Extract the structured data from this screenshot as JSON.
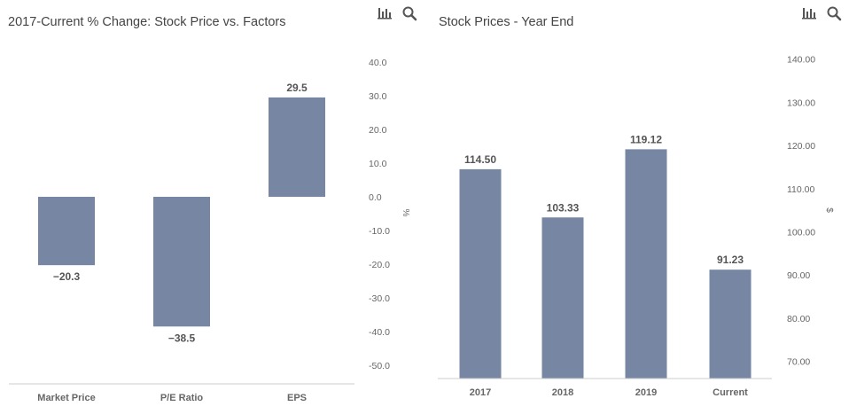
{
  "colors": {
    "bar": "#7787a3",
    "axis_text": "#666666",
    "title": "#444444",
    "label": "#555555",
    "icon": "#555555"
  },
  "icons": {
    "chart_menu": "bar-chart-icon",
    "search": "search-icon"
  },
  "charts": [
    {
      "title": "2017-Current % Change: Stock Price vs. Factors",
      "chart_data": {
        "type": "bar",
        "categories": [
          "Market Price",
          "P/E Ratio",
          "EPS"
        ],
        "values": [
          -20.3,
          -38.5,
          29.5
        ],
        "data_labels": [
          "−20.3",
          "−38.5",
          "29.5"
        ],
        "ylabel": "%",
        "ylim": [
          -50,
          40
        ],
        "yticks": [
          40,
          30,
          20,
          10,
          0,
          -10,
          -20,
          -30,
          -40,
          -50
        ],
        "ytick_labels": [
          "40.0",
          "30.0",
          "20.0",
          "10.0",
          "0.0",
          "-10.0",
          "-20.0",
          "-30.0",
          "-40.0",
          "-50.0"
        ],
        "y_axis_side": "right",
        "grid": false
      }
    },
    {
      "title": "Stock Prices - Year End",
      "chart_data": {
        "type": "bar",
        "categories": [
          "2017",
          "2018",
          "2019",
          "Current"
        ],
        "values": [
          114.5,
          103.33,
          119.12,
          91.23
        ],
        "data_labels": [
          "114.50",
          "103.33",
          "119.12",
          "91.23"
        ],
        "ylabel": "$",
        "ylim": [
          66,
          142
        ],
        "yticks": [
          140,
          130,
          120,
          110,
          100,
          90,
          80,
          70
        ],
        "ytick_labels": [
          "140.00",
          "130.00",
          "120.00",
          "110.00",
          "100.00",
          "90.00",
          "80.00",
          "70.00"
        ],
        "y_axis_side": "right",
        "grid": false
      }
    }
  ]
}
